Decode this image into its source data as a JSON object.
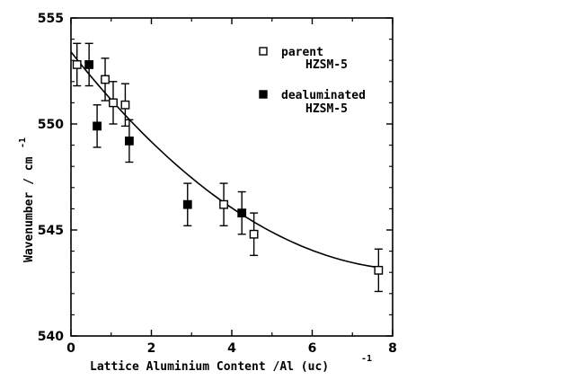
{
  "chart_data": {
    "type": "scatter",
    "title": "",
    "xlabel": "Lattice Aluminium Content /Al (uc)",
    "xlabel_superscript": "-1",
    "ylabel": "Wavenumber / cm",
    "ylabel_superscript": "-1",
    "xlim": [
      0,
      8
    ],
    "ylim": [
      540,
      555
    ],
    "x_ticks": [
      "0",
      "2",
      "4",
      "6",
      "8"
    ],
    "y_ticks": [
      "540",
      "545",
      "550",
      "555"
    ],
    "legend_position": "top-right",
    "grid": false,
    "series": [
      {
        "name": "parent",
        "name_line2": "HZSM-5",
        "marker": "open-square",
        "x": [
          0.15,
          0.85,
          1.05,
          1.35,
          3.8,
          4.55,
          7.65
        ],
        "y": [
          552.8,
          552.1,
          551.0,
          550.9,
          546.2,
          544.8,
          543.1
        ],
        "error": [
          1.0,
          1.0,
          1.0,
          1.0,
          1.0,
          1.0,
          1.0
        ]
      },
      {
        "name": "dealuminated",
        "name_line2": "HZSM-5",
        "marker": "filled-square",
        "x": [
          0.45,
          0.65,
          1.45,
          2.9,
          4.25
        ],
        "y": [
          552.8,
          549.9,
          549.2,
          546.2,
          545.8
        ],
        "error": [
          1.0,
          1.0,
          1.0,
          1.0,
          1.0
        ]
      }
    ],
    "fit_curve": {
      "type": "quadratic",
      "coefficients": [
        553.4,
        -2.4,
        0.14
      ],
      "x_range": [
        0,
        7.65
      ]
    }
  }
}
